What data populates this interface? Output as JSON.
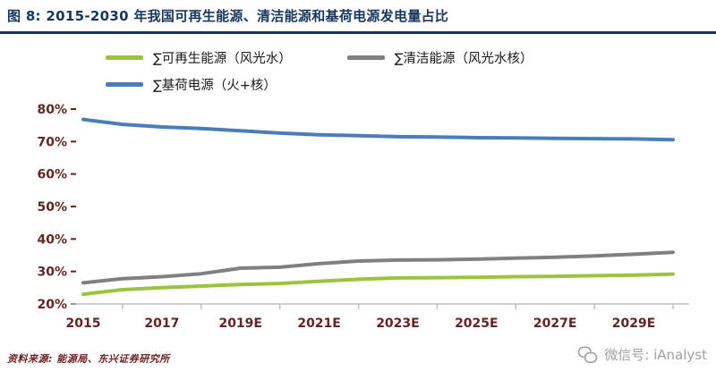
{
  "header": {
    "title": "图 8: 2015-2030 年我国可再生能源、清洁能源和基荷电源发电量占比"
  },
  "footer": {
    "source": "资料来源: 能源局、东兴证券研究所"
  },
  "watermark": {
    "text": "微信号: iAnalyst"
  },
  "colors": {
    "title": "#17365D",
    "rule": "#17365D",
    "axis_label": "#632423",
    "axis_line": "#BFBFBF",
    "source": "#6e2222",
    "watermark": "#a0a0a0",
    "renewable": "#9BC43C",
    "clean": "#808080",
    "baseload": "#4A7EBB"
  },
  "chart_data": {
    "type": "line",
    "title": "2015-2030 年我国可再生能源、清洁能源和基荷电源发电量占比",
    "xlabel": "",
    "ylabel": "",
    "ylim": [
      20,
      80
    ],
    "grid": false,
    "legend_position": "top",
    "x": [
      2015,
      2016,
      2017,
      2018,
      2019,
      2020,
      2021,
      2022,
      2023,
      2024,
      2025,
      2026,
      2027,
      2028,
      2029,
      2030
    ],
    "x_tick_labels": [
      "2015",
      "2017",
      "2019E",
      "2021E",
      "2023E",
      "2025E",
      "2027E",
      "2029E"
    ],
    "y_tick_labels": [
      "20%",
      "30%",
      "40%",
      "50%",
      "60%",
      "70%",
      "80%"
    ],
    "series": [
      {
        "name": "∑可再生能源（风光水）",
        "color_key": "renewable",
        "values": [
          23.0,
          24.4,
          25.0,
          25.5,
          26.0,
          26.3,
          27.0,
          27.6,
          28.0,
          28.1,
          28.2,
          28.4,
          28.5,
          28.7,
          28.9,
          29.2
        ]
      },
      {
        "name": "∑清洁能源（风光水核）",
        "color_key": "clean",
        "values": [
          26.5,
          27.8,
          28.4,
          29.3,
          31.0,
          31.3,
          32.4,
          33.2,
          33.5,
          33.6,
          33.8,
          34.1,
          34.4,
          34.8,
          35.3,
          35.9
        ]
      },
      {
        "name": "∑基荷电源（火+核）",
        "color_key": "baseload",
        "values": [
          76.8,
          75.3,
          74.5,
          74.0,
          73.3,
          72.6,
          72.1,
          71.8,
          71.5,
          71.4,
          71.2,
          71.1,
          71.0,
          70.9,
          70.8,
          70.6
        ]
      }
    ]
  }
}
